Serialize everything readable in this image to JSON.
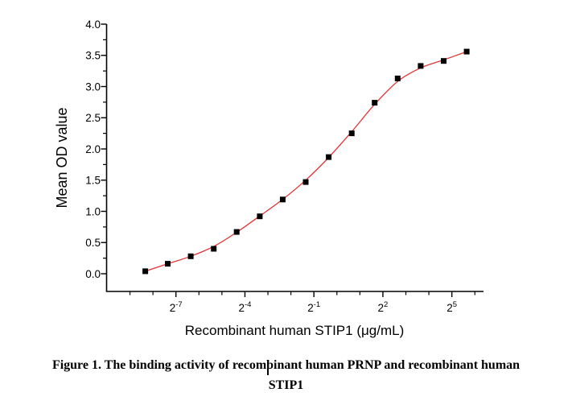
{
  "page": {
    "background": "#ffffff"
  },
  "figure": {
    "caption_line1": "Figure 1. The binding activity of recombinant human PRNP and recombinant human",
    "caption_line2": "STIP1"
  },
  "chart_data": {
    "type": "scatter",
    "title": "",
    "xlabel": "Recombinant human STIP1 (μg/mL)",
    "ylabel": "Mean OD value",
    "x_scale": "log2",
    "grid": false,
    "legend": false,
    "axis_color": "#000000",
    "series": [
      {
        "name": "Mean OD value",
        "marker": "filled-square",
        "marker_color": "#000000",
        "marker_size": 7,
        "x_ug_per_ml": [
          0.0031,
          0.0061,
          0.0122,
          0.0244,
          0.0488,
          0.0977,
          0.1953,
          0.3906,
          0.7813,
          1.5625,
          3.125,
          6.25,
          12.5,
          25,
          50
        ],
        "y_od": [
          0.04,
          0.16,
          0.28,
          0.4,
          0.67,
          0.92,
          1.19,
          1.47,
          1.87,
          2.25,
          2.74,
          3.13,
          3.33,
          3.41,
          3.56
        ]
      }
    ],
    "fit_line": {
      "type": "sigmoidal-4PL-fit",
      "color": "#e03535"
    },
    "x_axis": {
      "tick_label_base": "2",
      "major_tick_exponents": [
        -7,
        -4,
        -1,
        2,
        5
      ],
      "minor_tick_exponents": [
        -9,
        -8,
        -6,
        -5,
        -3,
        -2,
        0,
        1,
        3,
        4,
        6
      ],
      "xlim_exponents": [
        -10.1,
        6.4
      ]
    },
    "y_axis": {
      "major_ticks": [
        0.0,
        0.5,
        1.0,
        1.5,
        2.0,
        2.5,
        3.0,
        3.5,
        4.0
      ],
      "minor_ticks": [
        0.25,
        0.75,
        1.25,
        1.75,
        2.25,
        2.75,
        3.25,
        3.75
      ],
      "ylim": [
        -0.28,
        4.0
      ]
    }
  },
  "text_cursor": {
    "visible": true
  }
}
